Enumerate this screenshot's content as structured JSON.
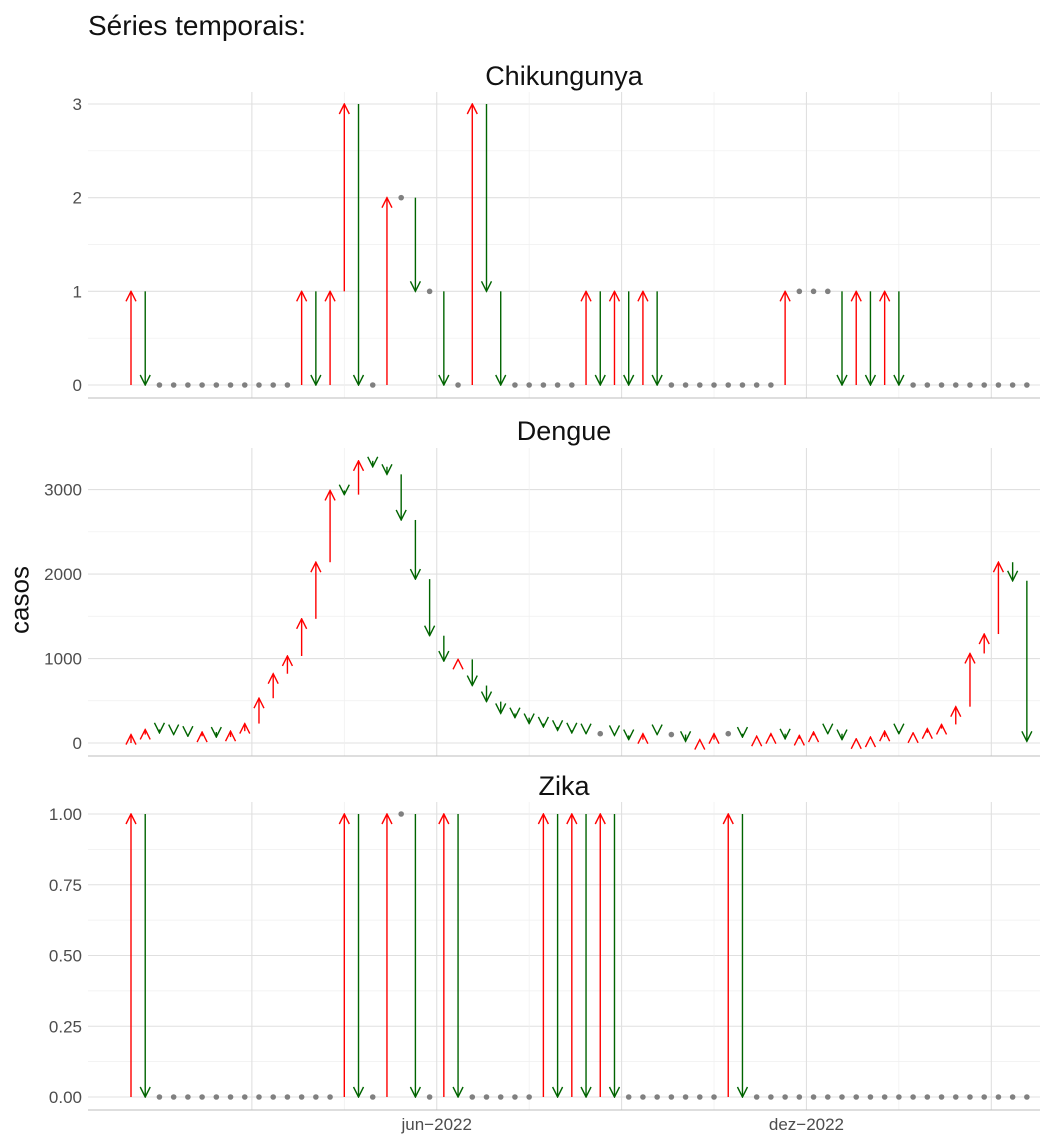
{
  "page_title": "Séries temporais:",
  "colors": {
    "up": "#ff0000",
    "down": "#006400",
    "same": "#808080"
  },
  "chart_data": {
    "type": "line",
    "title": "Séries temporais:",
    "ylabel": "casos",
    "xlabel": "",
    "x_axis": {
      "start_week": 1,
      "end_week": 64,
      "tick_labels": [
        {
          "week": 22.5,
          "label": "jun−2022"
        },
        {
          "week": 48.5,
          "label": "dez−2022"
        }
      ],
      "grid_weeks": [
        9.5,
        22.5,
        35.5,
        48.5,
        61.5
      ]
    },
    "grid": true,
    "facets": [
      {
        "name": "Chikungunya",
        "ylim": [
          0,
          3
        ],
        "yticks": [
          0,
          1,
          2,
          3
        ],
        "ytick_labels": [
          "0",
          "1",
          "2",
          "3"
        ],
        "values": [
          1,
          0,
          0,
          0,
          0,
          0,
          0,
          0,
          0,
          0,
          0,
          0,
          1,
          0,
          1,
          3,
          0,
          0,
          2,
          2,
          1,
          1,
          0,
          0,
          3,
          1,
          0,
          0,
          0,
          0,
          0,
          0,
          1,
          0,
          1,
          0,
          1,
          0,
          0,
          0,
          0,
          0,
          0,
          0,
          0,
          0,
          1,
          1,
          1,
          1,
          0,
          1,
          0,
          1,
          0,
          0,
          0,
          0,
          0,
          0,
          0,
          0,
          0,
          0
        ]
      },
      {
        "name": "Dengue",
        "ylim": [
          0,
          3350
        ],
        "yticks": [
          0,
          1000,
          2000,
          3000
        ],
        "ytick_labels": [
          "0",
          "1000",
          "2000",
          "3000"
        ],
        "values": [
          100,
          160,
          120,
          100,
          80,
          130,
          70,
          140,
          230,
          530,
          820,
          1030,
          1470,
          2140,
          2990,
          2940,
          3340,
          3270,
          3180,
          2640,
          1940,
          1270,
          970,
          990,
          680,
          490,
          350,
          300,
          230,
          190,
          150,
          120,
          110,
          110,
          90,
          40,
          110,
          100,
          100,
          20,
          40,
          110,
          110,
          70,
          80,
          110,
          50,
          90,
          130,
          110,
          40,
          50,
          70,
          140,
          110,
          120,
          170,
          220,
          430,
          1060,
          1290,
          2140,
          1920,
          20
        ]
      },
      {
        "name": "Zika",
        "ylim": [
          0,
          1
        ],
        "yticks": [
          0,
          0.25,
          0.5,
          0.75,
          1
        ],
        "ytick_labels": [
          "0.00",
          "0.25",
          "0.50",
          "0.75",
          "1.00"
        ],
        "values": [
          1,
          0,
          0,
          0,
          0,
          0,
          0,
          0,
          0,
          0,
          0,
          0,
          0,
          0,
          0,
          1,
          0,
          0,
          1,
          1,
          0,
          0,
          1,
          0,
          0,
          0,
          0,
          0,
          0,
          1,
          0,
          1,
          0,
          1,
          0,
          0,
          0,
          0,
          0,
          0,
          0,
          0,
          1,
          0,
          0,
          0,
          0,
          0,
          0,
          0,
          0,
          0,
          0,
          0,
          0,
          0,
          0,
          0,
          0,
          0,
          0,
          0,
          0,
          0
        ]
      }
    ]
  }
}
